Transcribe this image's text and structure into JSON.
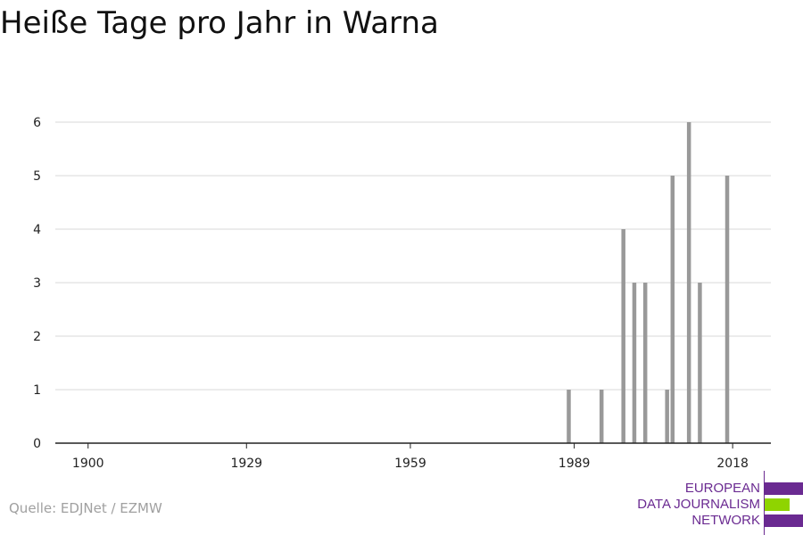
{
  "title": "Heiße Tage pro Jahr in Warna",
  "source": "Quelle: EDJNet / EZMW",
  "logo": {
    "line1": "EUROPEAN",
    "line2": "DATA JOURNALISM",
    "line3": "NETWORK",
    "colors": {
      "purple": "#6a2a91",
      "green": "#8fd400"
    }
  },
  "chart_data": {
    "type": "bar",
    "title": "Heiße Tage pro Jahr in Warna",
    "xlabel": "",
    "ylabel": "",
    "xlim": [
      1894,
      2025
    ],
    "ylim": [
      0,
      6
    ],
    "xticks": [
      1900,
      1929,
      1959,
      1989,
      2018
    ],
    "yticks": [
      0,
      1,
      2,
      3,
      4,
      5,
      6
    ],
    "grid": true,
    "bar_color": "#999999",
    "x": [
      1988,
      1994,
      1998,
      2000,
      2002,
      2006,
      2007,
      2010,
      2012,
      2017
    ],
    "values": [
      1,
      1,
      4,
      3,
      3,
      1,
      5,
      6,
      3,
      5
    ]
  }
}
